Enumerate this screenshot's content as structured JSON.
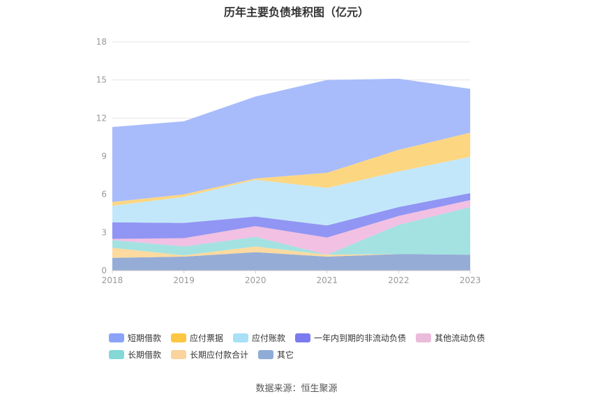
{
  "title": "历年主要负债堆积图（亿元）",
  "source": "数据来源：恒生聚源",
  "chart_data": {
    "type": "area",
    "stacked": true,
    "title": "历年主要负债堆积图（亿元）",
    "x": [
      "2018",
      "2019",
      "2020",
      "2021",
      "2022",
      "2023"
    ],
    "ylim": [
      0,
      18
    ],
    "yticks": [
      0,
      3,
      6,
      9,
      12,
      15,
      18
    ],
    "grid": true,
    "legend_position": "bottom",
    "series": [
      {
        "name": "其它",
        "color": "#8fa8d4",
        "values": [
          1.0,
          1.1,
          1.45,
          1.1,
          1.3,
          1.25
        ]
      },
      {
        "name": "长期应付款合计",
        "color": "#fcd89b",
        "values": [
          0.8,
          0.1,
          0.45,
          0.15,
          0.0,
          0.0
        ]
      },
      {
        "name": "长期借款",
        "color": "#9ee0df",
        "values": [
          0.6,
          0.7,
          0.75,
          0.0,
          2.3,
          3.75
        ]
      },
      {
        "name": "其他流动负债",
        "color": "#f0bde0",
        "values": [
          0.1,
          0.65,
          0.85,
          1.35,
          0.7,
          0.55
        ]
      },
      {
        "name": "一年内到期的非流动负债",
        "color": "#8b8ff2",
        "values": [
          1.3,
          1.2,
          0.75,
          0.95,
          0.7,
          0.55
        ]
      },
      {
        "name": "应付账款",
        "color": "#bfe6fb",
        "values": [
          1.3,
          2.05,
          2.9,
          2.95,
          2.8,
          2.85
        ]
      },
      {
        "name": "应付票据",
        "color": "#fdd47a",
        "values": [
          0.3,
          0.2,
          0.1,
          1.2,
          1.7,
          1.9
        ]
      },
      {
        "name": "短期借款",
        "color": "#a3b8fb",
        "values": [
          5.9,
          5.75,
          6.45,
          7.3,
          5.6,
          3.45
        ]
      }
    ]
  },
  "legend": {
    "row1": [
      {
        "label": "短期借款",
        "color": "#8ba4f9"
      },
      {
        "label": "应付票据",
        "color": "#fdc743"
      },
      {
        "label": "应付账款",
        "color": "#a8e0f8"
      },
      {
        "label": "一年内到期的非流动负债",
        "color": "#7b7bef"
      },
      {
        "label": "其他流动负债",
        "color": "#ebbbdb"
      }
    ],
    "row2": [
      {
        "label": "长期借款",
        "color": "#84d8d6"
      },
      {
        "label": "长期应付款合计",
        "color": "#fbd39d"
      },
      {
        "label": "其它",
        "color": "#8fabd8"
      }
    ]
  }
}
